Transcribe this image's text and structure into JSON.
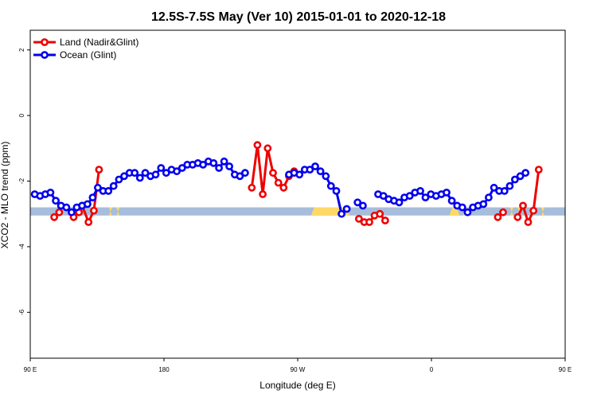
{
  "chart_data": {
    "type": "line",
    "title": "12.5S-7.5S May (Ver 10)   2015-01-01 to 2020-12-18",
    "xlabel": "Longitude (deg E)",
    "ylabel": "XCO2 - MLO trend (ppm)",
    "xlim": [
      90,
      450
    ],
    "ylim": [
      -7.4,
      2.6
    ],
    "x_ticks": [
      {
        "value": 90,
        "label": "90 E"
      },
      {
        "value": 180,
        "label": "180"
      },
      {
        "value": 270,
        "label": "90 W"
      },
      {
        "value": 360,
        "label": "0"
      },
      {
        "value": 450,
        "label": "90 E"
      },
      {
        "value": 540,
        "label": "180"
      }
    ],
    "y_ticks": [
      {
        "value": 2,
        "label": "2"
      },
      {
        "value": 0,
        "label": "0"
      },
      {
        "value": -2,
        "label": "-2"
      },
      {
        "value": -4,
        "label": "-4"
      },
      {
        "value": -6,
        "label": "-6"
      }
    ],
    "legend_position": "top-left",
    "grid": false,
    "band": {
      "y_top": -2.8,
      "y_bottom": -3.05,
      "color": "#a6bddb"
    },
    "land_band_segments": [
      {
        "x_start": 143,
        "x_end": 145
      },
      {
        "x_start": 148,
        "x_end": 150
      },
      {
        "x_start": 279,
        "x_end": 305
      },
      {
        "x_start": 372,
        "x_end": 379
      },
      {
        "x_start": 381,
        "x_end": 386
      },
      {
        "x_start": 413,
        "x_end": 415
      },
      {
        "x_start": 418,
        "x_end": 420
      },
      {
        "x_start": 434,
        "x_end": 436
      }
    ],
    "land_band_color": "#ffd966",
    "series": [
      {
        "name": "Land (Nadir&Glint)",
        "color": "#ee0000",
        "segments": [
          [
            [
              106.1,
              -3.1
            ],
            [
              109.5,
              -2.95
            ]
          ],
          [
            [
              119.2,
              -3.1
            ],
            [
              122.8,
              -2.95
            ]
          ],
          [
            [
              125.0,
              -2.75
            ],
            [
              129.2,
              -3.25
            ],
            [
              132.8,
              -2.9
            ],
            [
              136.3,
              -1.65
            ]
          ],
          [
            [
              239.1,
              -2.2
            ],
            [
              242.9,
              -0.9
            ],
            [
              246.5,
              -2.4
            ],
            [
              249.8,
              -1.0
            ],
            [
              253.4,
              -1.75
            ],
            [
              257.0,
              -2.05
            ],
            [
              260.5,
              -2.2
            ],
            [
              264.1,
              -1.85
            ],
            [
              267.6,
              -1.7
            ]
          ],
          [
            [
              311.2,
              -3.15
            ],
            [
              314.8,
              -3.25
            ],
            [
              318.2,
              -3.25
            ],
            [
              321.7,
              -3.05
            ],
            [
              325.3,
              -3.0
            ],
            [
              328.9,
              -3.2
            ]
          ],
          [
            [
              404.7,
              -3.1
            ],
            [
              408.2,
              -2.95
            ]
          ],
          [
            [
              418.0,
              -3.1
            ],
            [
              421.6,
              -2.75
            ],
            [
              425.1,
              -3.25
            ],
            [
              428.7,
              -2.9
            ],
            [
              432.2,
              -1.65
            ]
          ]
        ]
      },
      {
        "name": "Ocean (Glint)",
        "color": "#0000ee",
        "segments": [
          [
            [
              93.0,
              -2.4
            ],
            [
              96.6,
              -2.45
            ],
            [
              100.1,
              -2.4
            ],
            [
              103.6,
              -2.35
            ],
            [
              107.2,
              -2.6
            ],
            [
              110.7,
              -2.75
            ],
            [
              114.3,
              -2.8
            ],
            [
              117.8,
              -2.95
            ],
            [
              121.3,
              -2.8
            ],
            [
              124.9,
              -2.75
            ],
            [
              128.5,
              -2.7
            ],
            [
              132.0,
              -2.5
            ],
            [
              135.5,
              -2.2
            ],
            [
              139.0,
              -2.3
            ],
            [
              142.6,
              -2.3
            ],
            [
              146.1,
              -2.15
            ],
            [
              149.7,
              -1.95
            ],
            [
              153.2,
              -1.85
            ],
            [
              156.8,
              -1.75
            ],
            [
              160.3,
              -1.75
            ],
            [
              163.8,
              -1.9
            ],
            [
              167.4,
              -1.75
            ],
            [
              170.9,
              -1.85
            ],
            [
              174.4,
              -1.8
            ],
            [
              178.0,
              -1.6
            ],
            [
              181.5,
              -1.75
            ],
            [
              185.1,
              -1.65
            ],
            [
              188.6,
              -1.7
            ],
            [
              192.2,
              -1.6
            ],
            [
              195.7,
              -1.5
            ],
            [
              199.3,
              -1.5
            ],
            [
              202.8,
              -1.45
            ],
            [
              206.3,
              -1.5
            ],
            [
              209.9,
              -1.4
            ],
            [
              213.4,
              -1.45
            ],
            [
              217.0,
              -1.6
            ],
            [
              220.5,
              -1.4
            ],
            [
              224.0,
              -1.55
            ],
            [
              227.6,
              -1.8
            ],
            [
              231.1,
              -1.85
            ],
            [
              234.6,
              -1.75
            ]
          ],
          [
            [
              264.1,
              -1.8
            ],
            [
              267.6,
              -1.75
            ],
            [
              271.2,
              -1.8
            ],
            [
              274.7,
              -1.65
            ],
            [
              278.2,
              -1.65
            ],
            [
              281.8,
              -1.55
            ],
            [
              285.3,
              -1.7
            ],
            [
              288.9,
              -1.85
            ],
            [
              292.4,
              -2.15
            ],
            [
              296.0,
              -2.3
            ],
            [
              299.5,
              -3.0
            ],
            [
              303.0,
              -2.85
            ]
          ],
          [
            [
              310.3,
              -2.65
            ],
            [
              313.9,
              -2.75
            ]
          ],
          [
            [
              324.1,
              -2.4
            ],
            [
              327.7,
              -2.45
            ],
            [
              331.2,
              -2.55
            ],
            [
              334.8,
              -2.6
            ],
            [
              338.3,
              -2.65
            ],
            [
              341.8,
              -2.5
            ],
            [
              345.4,
              -2.45
            ],
            [
              348.9,
              -2.35
            ],
            [
              352.5,
              -2.3
            ],
            [
              356.0,
              -2.5
            ],
            [
              359.6,
              -2.4
            ],
            [
              363.1,
              -2.45
            ],
            [
              366.7,
              -2.4
            ],
            [
              370.2,
              -2.35
            ],
            [
              373.7,
              -2.6
            ],
            [
              377.3,
              -2.75
            ],
            [
              380.8,
              -2.8
            ],
            [
              384.3,
              -2.95
            ],
            [
              387.9,
              -2.8
            ],
            [
              391.4,
              -2.75
            ],
            [
              395.0,
              -2.7
            ],
            [
              398.5,
              -2.5
            ],
            [
              402.1,
              -2.2
            ],
            [
              405.6,
              -2.3
            ],
            [
              409.2,
              -2.3
            ],
            [
              412.7,
              -2.15
            ],
            [
              416.2,
              -1.95
            ],
            [
              419.8,
              -1.85
            ],
            [
              423.3,
              -1.75
            ]
          ]
        ]
      }
    ]
  }
}
